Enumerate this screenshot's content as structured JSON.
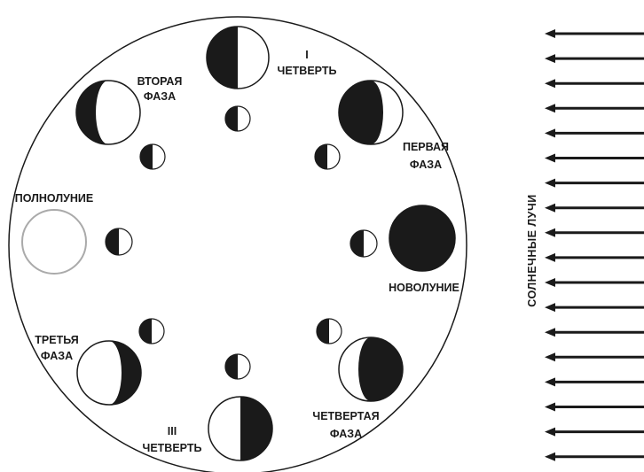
{
  "labels": {
    "first_quarter_line1": "I",
    "first_quarter_line2": "ЧЕТВЕРТЬ",
    "second_phase_line1": "ВТОРАЯ",
    "second_phase_line2": "ФАЗА",
    "first_phase_line1": "ПЕРВАЯ",
    "first_phase_line2": "ФАЗА",
    "full_moon": "ПОЛНОЛУНИЕ",
    "new_moon": "НОВОЛУНИЕ",
    "third_phase_line1": "ТРЕТЬЯ",
    "third_phase_line2": "ФАЗА",
    "third_quarter_line1": "III",
    "third_quarter_line2": "ЧЕТВЕРТЬ",
    "fourth_phase_line1": "ЧЕТВЕРТАЯ",
    "fourth_phase_line2": "ФАЗА",
    "sun_rays": "СОЛНЕЧНЫЕ ЛУЧИ"
  },
  "colors": {
    "ink": "#1a1a1a",
    "full_moon_outline": "#aaaaaa",
    "background": "#ffffff"
  }
}
